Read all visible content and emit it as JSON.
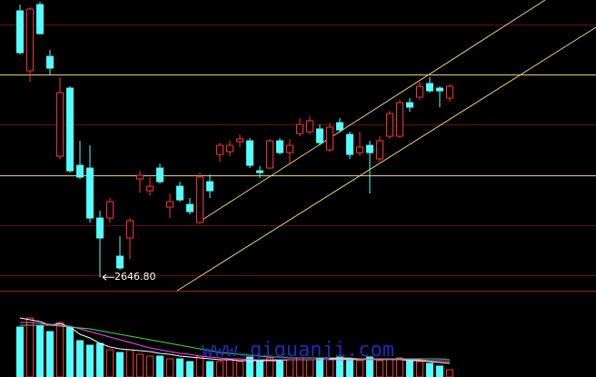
{
  "chart_data": {
    "type": "candlestick",
    "annotation": "2646.80",
    "watermark": "www.qiquanji.com",
    "up_color": "#ff3232",
    "down_color": "#54ffff",
    "ylim": [
      2632,
      2952
    ],
    "open": [
      2940,
      2874,
      2947,
      2890,
      2780,
      2855,
      2770,
      2767,
      2712,
      2712,
      2670,
      2690,
      2755,
      2742,
      2767,
      2724,
      2747,
      2727,
      2707,
      2752,
      2782,
      2785,
      2796,
      2797,
      2764,
      2767,
      2797,
      2784,
      2805,
      2807,
      2810,
      2787,
      2817,
      2804,
      2784,
      2792,
      2777,
      2802,
      2802,
      2839,
      2845,
      2860,
      2855,
      2844
    ],
    "high": [
      2947,
      2944,
      2950,
      2897,
      2867,
      2857,
      2797,
      2792,
      2720,
      2734,
      2692,
      2712,
      2764,
      2757,
      2772,
      2739,
      2752,
      2734,
      2762,
      2760,
      2795,
      2797,
      2804,
      2800,
      2769,
      2799,
      2800,
      2799,
      2822,
      2824,
      2815,
      2817,
      2822,
      2807,
      2807,
      2797,
      2802,
      2830,
      2842,
      2844,
      2862,
      2867,
      2857,
      2859
    ],
    "low": [
      2892,
      2862,
      2914,
      2870,
      2777,
      2762,
      2755,
      2707,
      2646.8,
      2707,
      2655,
      2667,
      2740,
      2737,
      2750,
      2712,
      2730,
      2716,
      2706,
      2734,
      2774,
      2780,
      2790,
      2767,
      2756,
      2766,
      2782,
      2772,
      2802,
      2804,
      2792,
      2785,
      2806,
      2777,
      2780,
      2739,
      2774,
      2799,
      2800,
      2829,
      2842,
      2850,
      2834,
      2840
    ],
    "close": [
      2894,
      2942,
      2915,
      2877,
      2850,
      2764,
      2757,
      2712,
      2690,
      2730,
      2657,
      2709,
      2759,
      2747,
      2752,
      2730,
      2732,
      2719,
      2757,
      2742,
      2792,
      2792,
      2799,
      2770,
      2762,
      2797,
      2784,
      2792,
      2815,
      2819,
      2795,
      2812,
      2809,
      2782,
      2790,
      2784,
      2797,
      2827,
      2839,
      2834,
      2857,
      2852,
      2852,
      2857
    ],
    "volume_ylim": [
      0,
      85
    ],
    "volume": [
      55,
      65,
      57,
      50,
      60,
      55,
      40,
      35,
      37,
      30,
      27,
      30,
      25,
      23,
      23,
      20,
      20,
      17,
      23,
      17,
      17,
      19,
      17,
      22,
      19,
      21,
      17,
      19,
      21,
      19,
      20,
      21,
      22,
      20,
      18,
      22,
      18,
      20,
      21,
      19,
      17,
      15,
      12,
      8
    ],
    "volume_ma": [
      {
        "color": "#ffffff",
        "values": [
          65,
          63,
          61,
          57,
          59,
          55,
          47,
          43,
          37,
          33,
          31,
          30,
          29,
          28,
          26,
          25,
          23,
          22,
          21,
          20,
          19,
          19,
          18,
          18,
          18,
          18,
          18,
          19,
          19,
          19,
          19,
          20,
          20,
          20,
          20,
          20,
          19,
          19,
          19,
          18,
          18,
          17,
          16,
          15
        ]
      },
      {
        "color": "#ff44ff",
        "values": [
          60,
          60,
          59,
          58,
          57,
          56,
          53,
          50,
          47,
          44,
          41,
          38,
          35,
          32,
          30,
          28,
          26,
          25,
          23,
          22,
          21,
          20,
          20,
          19,
          19,
          19,
          19,
          19,
          19,
          19,
          19,
          19,
          19,
          19,
          19,
          19,
          19,
          19,
          19,
          19,
          19,
          18,
          18,
          17
        ]
      },
      {
        "color": "#44dd44",
        "values": [
          57,
          57,
          57,
          57,
          56,
          55,
          54,
          53,
          51,
          49,
          47,
          45,
          43,
          41,
          39,
          37,
          35,
          33,
          31,
          29,
          27,
          26,
          25,
          24,
          23,
          22,
          22,
          21,
          21,
          21,
          21,
          21,
          21,
          21,
          20,
          20,
          20,
          20,
          20,
          20,
          20,
          20,
          20,
          19
        ]
      }
    ]
  }
}
